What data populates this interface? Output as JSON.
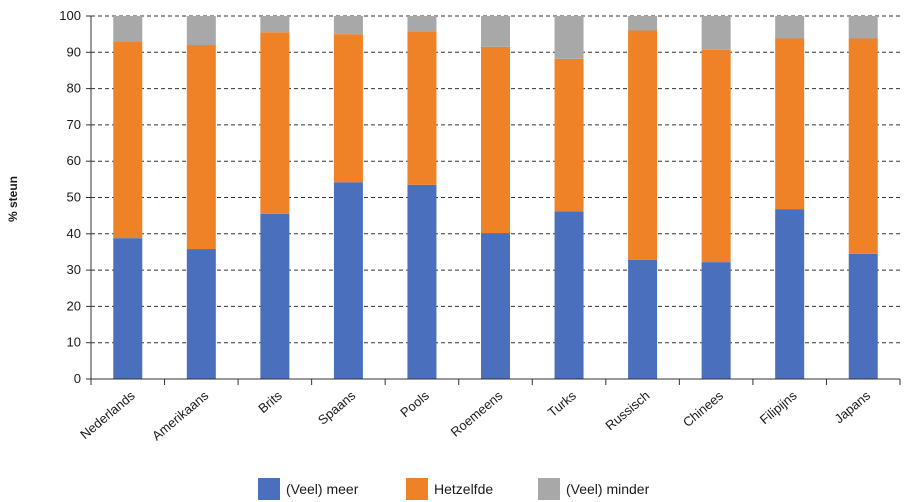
{
  "chart_data": {
    "type": "bar",
    "stacked": true,
    "ylabel": "% steun",
    "xlabel": "",
    "ylim": [
      0,
      100
    ],
    "yticks": [
      0,
      10,
      20,
      30,
      40,
      50,
      60,
      70,
      80,
      90,
      100
    ],
    "grid": "horizontal dashed",
    "legend_position": "bottom",
    "categories": [
      "Nederlands",
      "Amerikaans",
      "Brits",
      "Spaans",
      "Pools",
      "Roemeens",
      "Turks",
      "Russisch",
      "Chinees",
      "Filipijns",
      "Japans"
    ],
    "series": [
      {
        "name": "(Veel) meer",
        "color": "#4a6fbd",
        "values": [
          38.8,
          35.8,
          45.5,
          54.2,
          53.5,
          40.2,
          46.2,
          32.8,
          32.2,
          46.8,
          34.5
        ]
      },
      {
        "name": "Hetzelfde",
        "color": "#ef8126",
        "values": [
          54.2,
          56.2,
          50.0,
          40.8,
          42.3,
          51.3,
          42.0,
          63.2,
          58.5,
          47.0,
          59.3
        ]
      },
      {
        "name": "(Veel) minder",
        "color": "#a8a8a8",
        "values": [
          7.0,
          8.0,
          4.5,
          5.0,
          4.2,
          8.5,
          11.8,
          4.0,
          9.3,
          6.2,
          6.2
        ]
      }
    ]
  }
}
